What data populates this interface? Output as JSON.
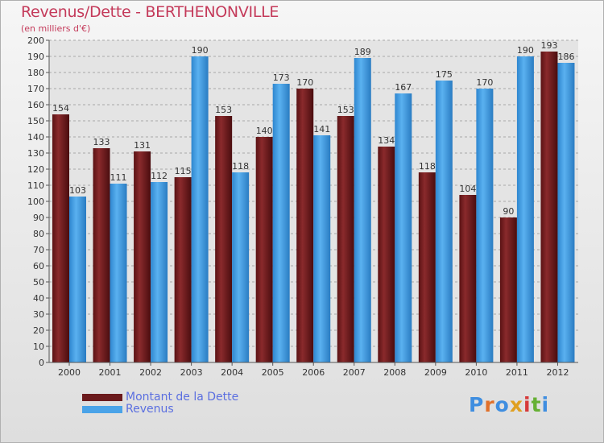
{
  "title": "Revenus/Dette - BERTHENONVILLE",
  "subtitle": "(en milliers d'€)",
  "brand": "Proxiti",
  "colors": {
    "dette": "#6b1a1c",
    "revenus": "#4aa3e8",
    "title": "#c43a5a",
    "legend_text": "#5b6fe0"
  },
  "chart_data": {
    "type": "bar",
    "title": "Revenus/Dette - BERTHENONVILLE",
    "subtitle": "(en milliers d'€)",
    "categories": [
      "2000",
      "2001",
      "2002",
      "2003",
      "2004",
      "2005",
      "2006",
      "2007",
      "2008",
      "2009",
      "2010",
      "2011",
      "2012"
    ],
    "series": [
      {
        "name": "Montant de la Dette",
        "values": [
          154,
          133,
          131,
          115,
          153,
          140,
          170,
          153,
          134,
          118,
          104,
          90,
          193
        ]
      },
      {
        "name": "Revenus",
        "values": [
          103,
          111,
          112,
          190,
          118,
          173,
          141,
          189,
          167,
          175,
          170,
          190,
          186
        ]
      }
    ],
    "yticks": [
      0,
      10,
      20,
      30,
      40,
      50,
      60,
      70,
      80,
      90,
      100,
      110,
      120,
      130,
      140,
      150,
      160,
      170,
      180,
      190,
      200
    ],
    "ylim": [
      0,
      200
    ],
    "grid": true,
    "legend_position": "bottom-left"
  }
}
